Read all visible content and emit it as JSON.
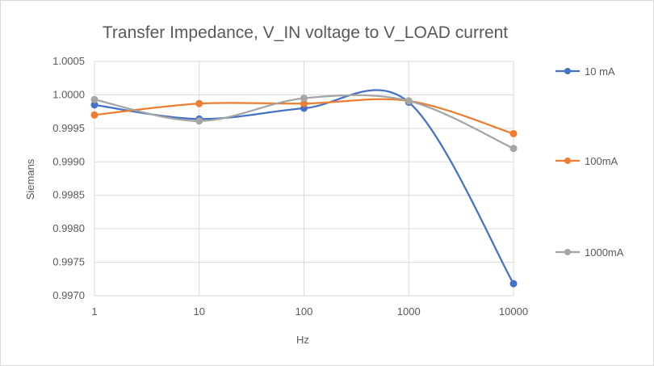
{
  "chart_data": {
    "type": "line",
    "title": "Transfer Impedance, V_IN voltage to V_LOAD current",
    "xlabel": "Hz",
    "ylabel": "Siemans",
    "x_scale": "log",
    "categories": [
      "1",
      "10",
      "100",
      "1000",
      "10000"
    ],
    "x": [
      1,
      10,
      100,
      1000,
      10000
    ],
    "ylim": [
      0.997,
      1.0005
    ],
    "yticks": [
      "0.9970",
      "0.9975",
      "0.9980",
      "0.9985",
      "0.9990",
      "0.9995",
      "1.0000",
      "1.0005"
    ],
    "grid": true,
    "smooth": true,
    "legend_position": "right",
    "series": [
      {
        "name": "10 mA",
        "color": "#4472C4",
        "values": [
          0.99985,
          0.99964,
          0.9998,
          0.99989,
          0.99718
        ]
      },
      {
        "name": "100mA",
        "color": "#ED7D31",
        "values": [
          0.9997,
          0.99987,
          0.99987,
          0.99991,
          0.99942
        ]
      },
      {
        "name": "1000mA",
        "color": "#A5A5A5",
        "values": [
          0.99993,
          0.99961,
          0.99995,
          0.99991,
          0.9992
        ]
      }
    ]
  }
}
